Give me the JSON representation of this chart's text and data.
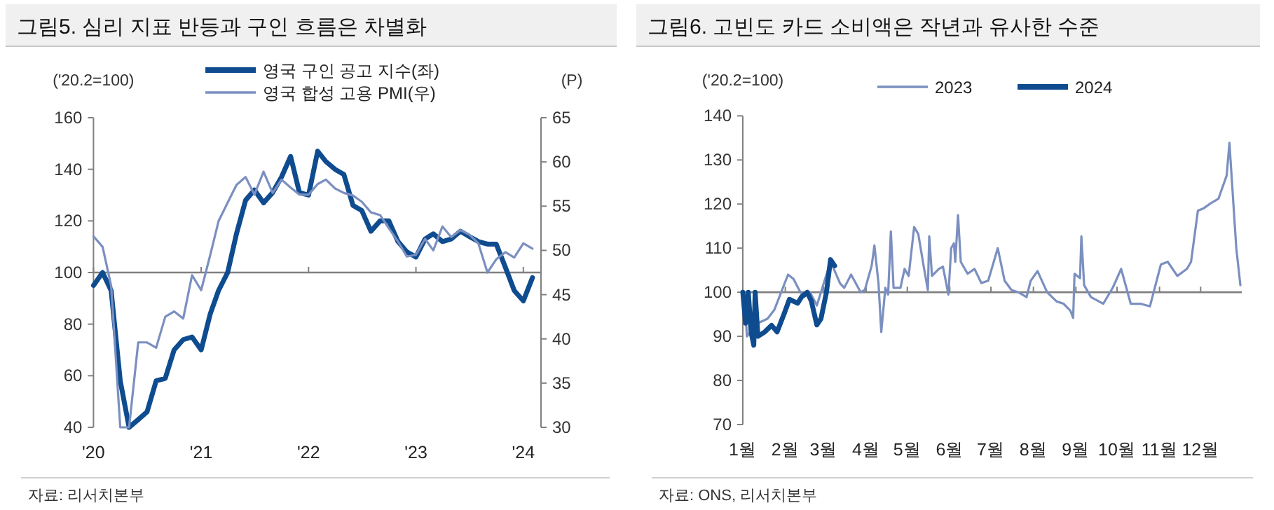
{
  "chart_data": [
    {
      "type": "line",
      "title": "그림5. 심리 지표 반등과 구인 흐름은 차별화",
      "ylabel": "('20.2=100)",
      "y2label": "(P)",
      "legend": "top",
      "x": [
        "2020-01",
        "2020-02",
        "2020-03",
        "2020-04",
        "2020-05",
        "2020-06",
        "2020-07",
        "2020-08",
        "2020-09",
        "2020-10",
        "2020-11",
        "2020-12",
        "2021-01",
        "2021-02",
        "2021-03",
        "2021-04",
        "2021-05",
        "2021-06",
        "2021-07",
        "2021-08",
        "2021-09",
        "2021-10",
        "2021-11",
        "2021-12",
        "2022-01",
        "2022-02",
        "2022-03",
        "2022-04",
        "2022-05",
        "2022-06",
        "2022-07",
        "2022-08",
        "2022-09",
        "2022-10",
        "2022-11",
        "2022-12",
        "2023-01",
        "2023-02",
        "2023-03",
        "2023-04",
        "2023-05",
        "2023-06",
        "2023-07",
        "2023-08",
        "2023-09",
        "2023-10",
        "2023-11",
        "2023-12",
        "2024-01",
        "2024-02"
      ],
      "series": [
        {
          "name": "영국 구인 공고 지수(좌)",
          "color": "#0f4c8f",
          "values": [
            95,
            100,
            93,
            58,
            40,
            43,
            46,
            58,
            59,
            70,
            74,
            75,
            70,
            84,
            93,
            100,
            115,
            128,
            132,
            127,
            131,
            137,
            145,
            131,
            130,
            147,
            143,
            140,
            138,
            126,
            124,
            116,
            120,
            120,
            112,
            108,
            106,
            113,
            115,
            112,
            113,
            116,
            114,
            112,
            111,
            111,
            102,
            93,
            89,
            98
          ]
        },
        {
          "name": "영국 합성 고용 PMI(우)",
          "color": "#7b8fc0",
          "axis": "y2",
          "values": [
            51.6,
            50.4,
            46.0,
            30,
            30,
            39.6,
            39.6,
            39.0,
            42.5,
            43.1,
            42.3,
            47.2,
            45.5,
            49.5,
            53.3,
            55.4,
            57.4,
            58.3,
            56.3,
            58.9,
            56.5,
            58.0,
            57.1,
            56.3,
            56.3,
            57.5,
            58,
            57,
            56.5,
            56.2,
            55.5,
            54.3,
            54,
            52.5,
            51,
            49.3,
            49.5,
            51.3,
            50,
            52.7,
            51.5,
            52.3,
            51.8,
            50.8,
            47.5,
            49,
            49.8,
            49.2,
            50.8,
            50.2
          ]
        }
      ],
      "xlim": [
        "2020-01",
        "2024-03"
      ],
      "xticks": [
        {
          "value": "2020-01",
          "label": "'20"
        },
        {
          "value": "2021-01",
          "label": "'21"
        },
        {
          "value": "2022-01",
          "label": "'22"
        },
        {
          "value": "2023-01",
          "label": "'23"
        },
        {
          "value": "2024-01",
          "label": "'24"
        }
      ],
      "ylim": [
        40,
        160
      ],
      "yticks": [
        40,
        60,
        80,
        100,
        120,
        140,
        160
      ],
      "y2lim": [
        30,
        65
      ],
      "y2ticks": [
        30,
        35,
        40,
        45,
        50,
        55,
        60,
        65
      ],
      "ref_lines": [
        {
          "axis": "y",
          "value": 100,
          "color": "#808080"
        }
      ],
      "annotations": [
        "자료: 리서치본부"
      ]
    },
    {
      "type": "line",
      "title": "그림6. 고빈도 카드 소비액은 작년과 유사한 수준",
      "ylabel": "('20.2=100)",
      "legend": "top right",
      "series": [
        {
          "name": "2023",
          "color": "#7b8fc0",
          "x": [
            "--01-01",
            "--01-02",
            "--01-04",
            "--01-12",
            "--01-19",
            "--01-24",
            "--01-29",
            "--02-03",
            "--02-07",
            "--02-12",
            "--02-15",
            "--02-19",
            "--02-24",
            "--02-27",
            "--03-06",
            "--03-13",
            "--03-16",
            "--03-21",
            "--03-28",
            "--03-31",
            "--04-05",
            "--04-07",
            "--04-10",
            "--04-12",
            "--04-15",
            "--04-17",
            "--04-19",
            "--04-21",
            "--04-26",
            "--04-29",
            "--05-02",
            "--05-06",
            "--05-09",
            "--05-13",
            "--05-16",
            "--05-17",
            "--05-19",
            "--05-24",
            "--05-27",
            "--05-31",
            "--06-02",
            "--06-04",
            "--06-05",
            "--06-07",
            "--06-09",
            "--06-14",
            "--06-19",
            "--06-24",
            "--06-29",
            "--07-06",
            "--07-11",
            "--07-16",
            "--07-21",
            "--07-27",
            "--07-30",
            "--08-04",
            "--08-11",
            "--08-18",
            "--08-23",
            "--08-28",
            "--08-30",
            "--08-31",
            "--09-04",
            "--09-05",
            "--09-07",
            "--09-12",
            "--09-21",
            "--09-28",
            "--10-04",
            "--10-11",
            "--10-18",
            "--10-25",
            "--11-02",
            "--11-07",
            "--11-14",
            "--11-21",
            "--11-24",
            "--11-29",
            "--12-03",
            "--12-08",
            "--12-14",
            "--12-20",
            "--12-22",
            "--12-27",
            "--12-30"
          ],
          "values": [
            100,
            100,
            90,
            93,
            94,
            96,
            100,
            104,
            103,
            100,
            99,
            100,
            97,
            100,
            107,
            102,
            101,
            104,
            100,
            100.5,
            106,
            110.6,
            102,
            91,
            101,
            99.5,
            113.8,
            101,
            101,
            105.3,
            103.7,
            114.8,
            113.2,
            105.8,
            100.5,
            112.7,
            103.7,
            105.3,
            105.8,
            99.5,
            110,
            111.1,
            106.9,
            117.5,
            106.9,
            104.2,
            105.3,
            102.1,
            102.6,
            110,
            102.6,
            100.5,
            100,
            98.9,
            102.6,
            104.8,
            100,
            97.9,
            97.4,
            95.8,
            94.2,
            104.2,
            103.2,
            112.7,
            101.6,
            98.9,
            97.4,
            101.1,
            105.3,
            97.4,
            97.4,
            96.8,
            106.3,
            106.9,
            103.7,
            105.3,
            106.9,
            118.5,
            119,
            120.1,
            121.2,
            126.5,
            133.9,
            110,
            101.6
          ]
        },
        {
          "name": "2024",
          "color": "#0f4c8f",
          "x": [
            "--01-01",
            "--01-03",
            "--01-05",
            "--01-07",
            "--01-09",
            "--01-10",
            "--01-12",
            "--01-17",
            "--01-22",
            "--01-26",
            "--01-31",
            "--02-04",
            "--02-10",
            "--02-13",
            "--02-17",
            "--02-20",
            "--02-24",
            "--02-27",
            "--03-03",
            "--03-06",
            "--03-09"
          ],
          "values": [
            100,
            93,
            100,
            91,
            88,
            100,
            90,
            91,
            92.5,
            91,
            95,
            98.4,
            97.5,
            99,
            100,
            98,
            92.6,
            94,
            100,
            107.4,
            106
          ]
        }
      ],
      "xlim": [
        "--01-01",
        "--12-31"
      ],
      "xticks": [
        {
          "value": "--01-01",
          "label": "1월"
        },
        {
          "value": "--02-01",
          "label": "2월"
        },
        {
          "value": "--03-01",
          "label": "3월"
        },
        {
          "value": "--04-01",
          "label": "4월"
        },
        {
          "value": "--05-01",
          "label": "5월"
        },
        {
          "value": "--06-01",
          "label": "6월"
        },
        {
          "value": "--07-01",
          "label": "7월"
        },
        {
          "value": "--08-01",
          "label": "8월"
        },
        {
          "value": "--09-01",
          "label": "9월"
        },
        {
          "value": "--10-01",
          "label": "10월"
        },
        {
          "value": "--11-01",
          "label": "11월"
        },
        {
          "value": "--12-01",
          "label": "12월"
        }
      ],
      "ylim": [
        70,
        140
      ],
      "yticks": [
        70,
        80,
        90,
        100,
        110,
        120,
        130,
        140
      ],
      "ref_lines": [
        {
          "axis": "y",
          "value": 100,
          "color": "#808080"
        }
      ],
      "annotations": [
        "자료: ONS, 리서치본부"
      ]
    }
  ]
}
